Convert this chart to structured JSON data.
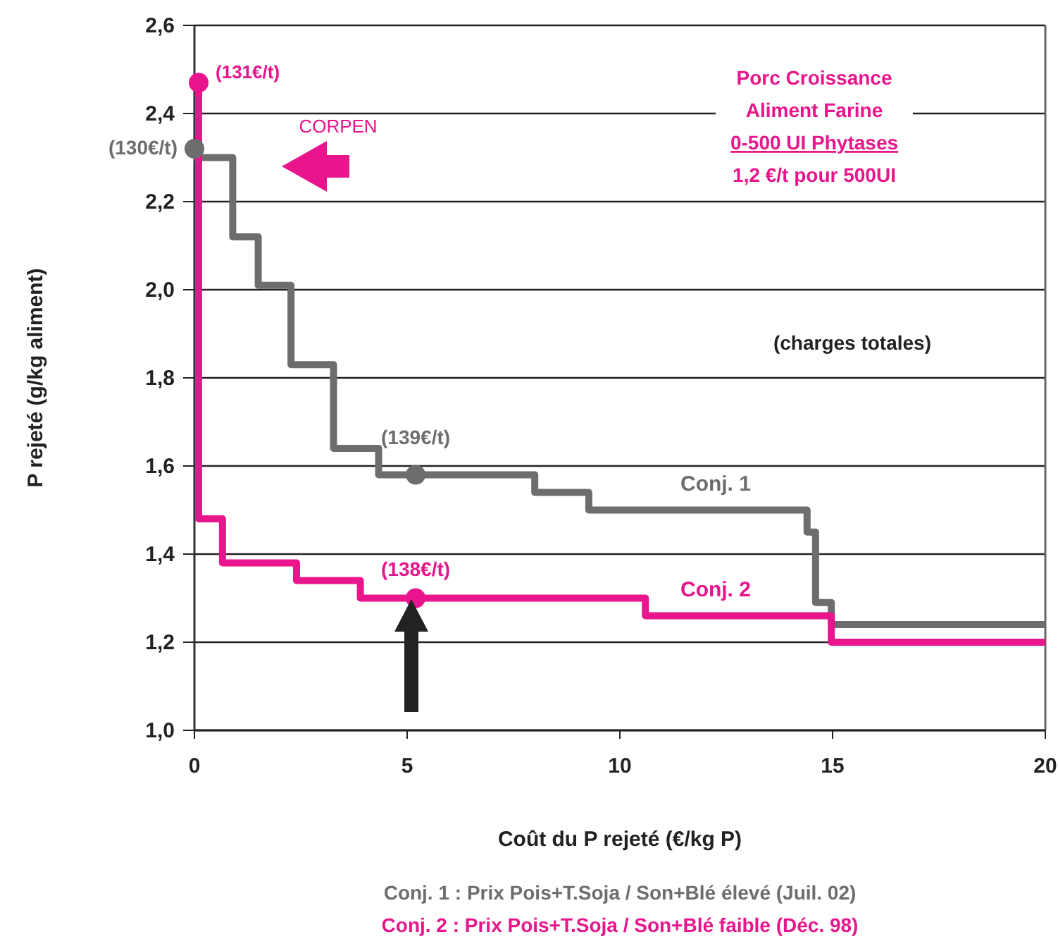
{
  "chart_data": {
    "type": "step",
    "xlabel": "Coût du P rejeté (€/kg P)",
    "ylabel": "P rejeté (g/kg aliment)",
    "xlim": [
      0,
      20
    ],
    "xticks": [
      0,
      5,
      10,
      15,
      20
    ],
    "ylim": [
      1.0,
      2.6
    ],
    "yticks": [
      {
        "value": 1.0,
        "label": "1,0"
      },
      {
        "value": 1.2,
        "label": "1,2"
      },
      {
        "value": 1.4,
        "label": "1,4"
      },
      {
        "value": 1.6,
        "label": "1,6"
      },
      {
        "value": 1.8,
        "label": "1,8"
      },
      {
        "value": 2.0,
        "label": "2,0"
      },
      {
        "value": 2.2,
        "label": "2,2"
      },
      {
        "value": 2.4,
        "label": "2,4"
      },
      {
        "value": 2.6,
        "label": "2,6"
      }
    ],
    "grid": "y",
    "line_style": "solid",
    "series": [
      {
        "name": "Conj. 1",
        "color": "#6d6d6d",
        "x": [
          0,
          0.9,
          1.5,
          2.27,
          3.27,
          4.33,
          8.0,
          9.27,
          14.4,
          14.6,
          14.97,
          20
        ],
        "values": [
          2.3,
          2.12,
          2.01,
          1.83,
          1.64,
          1.58,
          1.54,
          1.5,
          1.45,
          1.29,
          1.24,
          1.24
        ]
      },
      {
        "name": "Conj. 2",
        "color": "#e8158c",
        "x": [
          0.1,
          0.1,
          0.66,
          2.4,
          3.9,
          10.6,
          14.97,
          20
        ],
        "values": [
          2.47,
          1.48,
          1.38,
          1.34,
          1.3,
          1.26,
          1.2,
          1.2
        ]
      },
      {
        "type": "scatter",
        "color": "#6d6d6d",
        "marker": "circle",
        "x": [
          0,
          5.2
        ],
        "values": [
          2.32,
          1.58
        ]
      },
      {
        "type": "scatter",
        "color": "#e8158c",
        "marker": "circle",
        "x": [
          0.1,
          5.2
        ],
        "values": [
          2.47,
          1.3
        ]
      }
    ],
    "annotations": [
      {
        "text": "(131€/t)",
        "x": 0.1,
        "y": 2.47
      },
      {
        "text": "(130€/t)",
        "x": 0,
        "y": 2.32
      },
      {
        "text": "(139€/t)",
        "x": 5.2,
        "y": 1.58
      },
      {
        "text": "(138€/t)",
        "x": 5.2,
        "y": 1.3
      },
      "CORPEN",
      "Porc Croissance",
      "Aliment Farine",
      "0-500 UI Phytases",
      "1,2 €/t pour 500UI",
      "(charges totales)",
      "Conj. 1 : Prix Pois+T.Soja / Son+Blé élevé (Juil. 02)",
      "Conj. 2 : Prix Pois+T.Soja / Son+Blé faible (Déc. 98)"
    ]
  }
}
